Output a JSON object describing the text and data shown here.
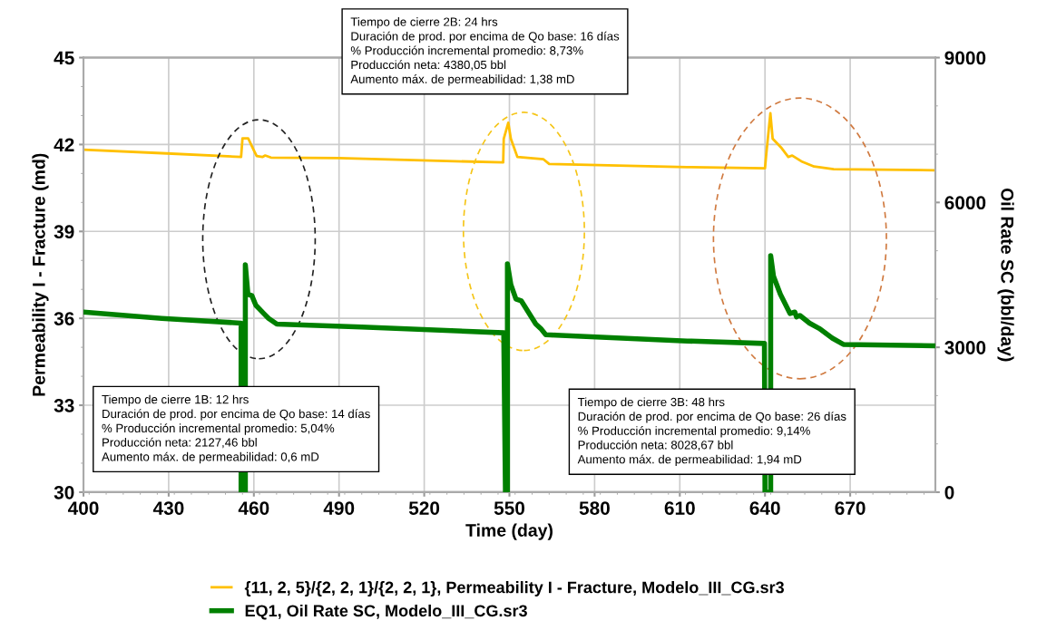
{
  "chart_data": {
    "type": "line",
    "xlabel": "Time (day)",
    "ylabel": "Permeability I - Fracture (md)",
    "y2label": "Oil Rate SC (bbl/day)",
    "xlim": [
      400,
      700
    ],
    "xticks": [
      400,
      430,
      460,
      490,
      520,
      550,
      580,
      610,
      640,
      670
    ],
    "ylim": [
      30,
      45
    ],
    "yticks": [
      30,
      33,
      36,
      39,
      42,
      45
    ],
    "y2lim": [
      0,
      9000
    ],
    "y2ticks": [
      0,
      3000,
      6000,
      9000
    ],
    "grid": true,
    "legend": "bottom",
    "line_style": "solid",
    "marker": "none",
    "series": [
      {
        "name": "{11, 2, 5}/{2, 2, 1}/{2, 2, 1}, Permeability I - Fracture, Modelo_III_CG.sr3",
        "color": "#ffc000",
        "x": [
          400,
          427.6,
          455.5,
          456,
          458,
          460,
          461,
          463,
          464,
          466,
          490,
          547.8,
          548,
          549.6,
          550.5,
          552.8,
          562,
          564,
          612.6,
          640,
          640.4,
          641.9,
          642.7,
          645.9,
          648.2,
          649.6,
          652.8,
          657.3,
          664.2,
          700
        ],
        "values": [
          41.82,
          41.7,
          41.57,
          42.21,
          42.21,
          41.8,
          41.6,
          41.57,
          41.62,
          41.55,
          41.53,
          41.38,
          42.2,
          42.75,
          42.2,
          41.57,
          41.49,
          41.33,
          41.22,
          41.18,
          41.62,
          43.08,
          42.2,
          41.87,
          41.57,
          41.62,
          41.42,
          41.24,
          41.15,
          41.11
        ]
      },
      {
        "name": "EQ1, Oil Rate SC, Modelo_III_CG.sr3",
        "color": "#008000",
        "axis": "y2",
        "x": [
          400,
          427.6,
          455.5,
          455.5,
          457,
          457,
          457.9,
          459.3,
          460.7,
          463.5,
          465.2,
          468.1,
          498,
          548,
          548.6,
          549.3,
          549.3,
          550.5,
          552.3,
          554.2,
          559.3,
          561,
          562.8,
          612.6,
          639.8,
          640,
          642,
          642,
          643,
          645.4,
          648.8,
          650.5,
          651.1,
          652.3,
          655.7,
          659.1,
          663.7,
          667.6,
          699.6
        ],
        "values": [
          3730,
          3600,
          3500,
          0,
          0,
          4710,
          4100,
          4070,
          3870,
          3700,
          3600,
          3480,
          3420,
          3300,
          0,
          0,
          4730,
          4300,
          4000,
          3960,
          3480,
          3390,
          3260,
          3130,
          3080,
          0,
          0,
          4900,
          4470,
          4100,
          3700,
          3730,
          3630,
          3660,
          3500,
          3390,
          3190,
          3060,
          3030
        ]
      }
    ],
    "annotations": [
      "Tiempo de cierre 1B: 12 hrs\nDuración de prod. por encima de Qo base: 14 días\n% Producción incremental promedio: 5,04%\nProducción neta: 2127,46 bbl\nAumento máx. de permeabilidad: 0,6 mD",
      "Tiempo de cierre 2B: 24 hrs\nDuración de prod. por encima de Qo base: 16 días\n% Producción incremental promedio: 8,73%\nProducción neta: 4380,05 bbl\nAumento máx. de permeabilidad: 1,38 mD",
      "Tiempo de cierre 3B: 48 hrs\nDuración de prod. por encima de Qo base: 26 días\n% Producción incremental promedio: 9,14%\nProducción neta: 8028,67 bbl\nAumento máx. de permeabilidad: 1,94 mD"
    ]
  }
}
